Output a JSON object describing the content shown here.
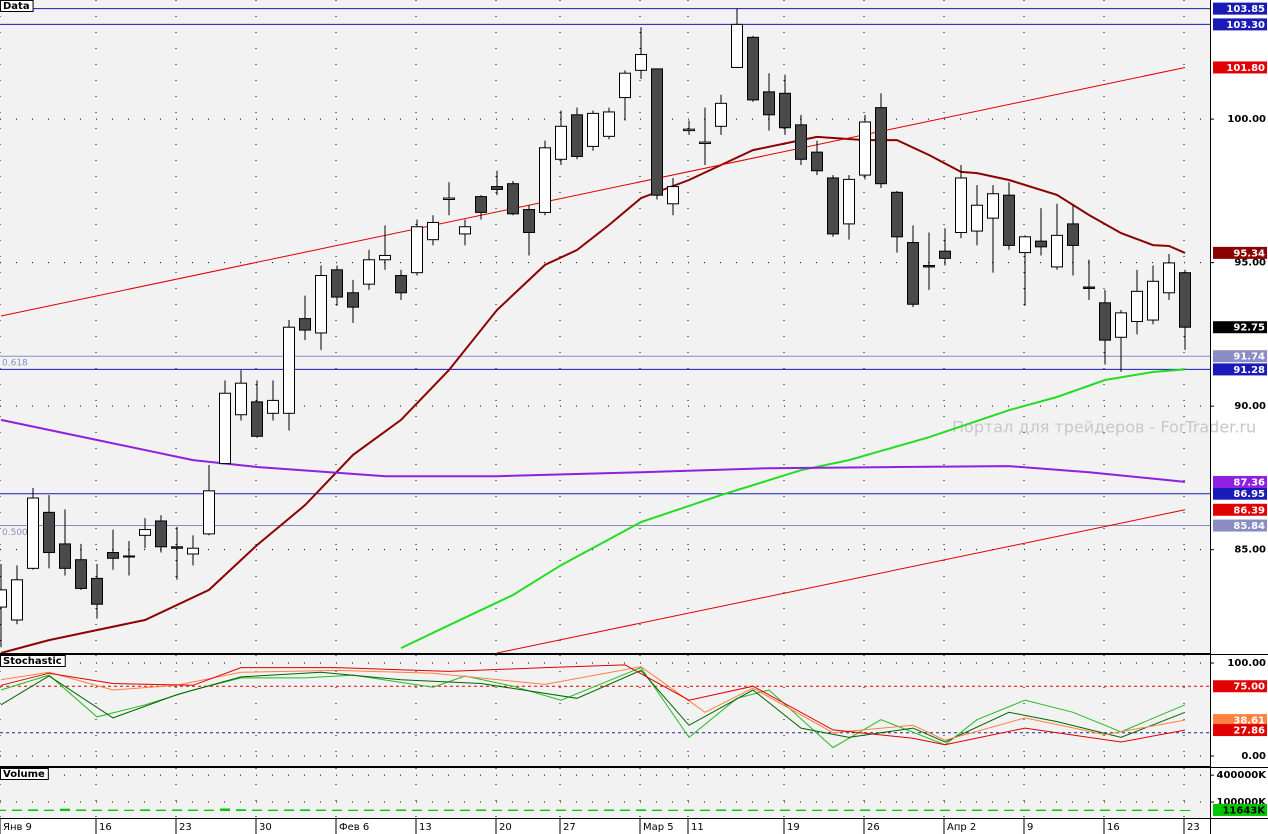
{
  "watermark": "Портал для трейдеров - ForTrader.ru",
  "chart_data": [
    {
      "type": "candlestick",
      "title": "Data",
      "x": [
        0,
        1,
        2,
        3,
        4,
        5,
        6,
        7,
        8,
        9,
        10,
        11,
        12,
        13,
        14,
        15,
        16,
        17,
        18,
        19,
        20,
        21,
        22,
        23,
        24,
        25,
        26,
        27,
        28,
        29,
        30,
        31,
        32,
        33,
        34,
        35,
        36,
        37,
        38,
        39,
        40,
        41,
        42,
        43,
        44,
        45,
        46,
        47,
        48,
        49,
        50,
        51,
        52,
        53,
        54,
        55,
        56,
        57,
        58,
        59,
        60,
        61,
        62,
        63,
        64,
        65,
        66,
        67,
        68,
        69,
        70,
        71,
        72,
        73,
        74
      ],
      "open": [
        83.0,
        82.55,
        84.35,
        86.3,
        85.2,
        84.65,
        84.0,
        84.9,
        84.75,
        85.5,
        86.0,
        85.1,
        84.85,
        85.55,
        88.0,
        89.7,
        90.15,
        89.75,
        89.75,
        93.05,
        92.55,
        94.75,
        93.95,
        94.25,
        95.1,
        94.55,
        94.65,
        95.8,
        97.2,
        96.0,
        97.3,
        97.65,
        97.75,
        96.85,
        96.75,
        98.6,
        100.15,
        99.05,
        99.4,
        100.75,
        101.7,
        101.75,
        97.05,
        99.6,
        99.15,
        99.75,
        101.8,
        102.85,
        100.95,
        100.9,
        99.8,
        98.85,
        97.95,
        96.35,
        98.05,
        100.4,
        97.45,
        95.7,
        94.9,
        95.4,
        96.05,
        96.1,
        96.55,
        97.35,
        95.35,
        95.75,
        94.85,
        96.35,
        94.15,
        93.6,
        92.4,
        92.95,
        93.0,
        93.95,
        94.65
      ],
      "high": [
        84.5,
        84.45,
        87.15,
        86.9,
        86.4,
        85.2,
        84.5,
        85.7,
        85.3,
        86.1,
        86.2,
        85.8,
        85.5,
        87.95,
        90.9,
        91.25,
        90.9,
        90.9,
        93.0,
        93.85,
        94.9,
        94.9,
        94.4,
        95.45,
        96.3,
        94.75,
        96.5,
        96.65,
        97.8,
        96.5,
        97.35,
        98.2,
        97.85,
        97.0,
        99.25,
        100.3,
        100.4,
        100.3,
        100.4,
        101.7,
        103.2,
        101.75,
        97.95,
        99.95,
        100.4,
        100.85,
        103.85,
        102.9,
        101.6,
        101.55,
        100.15,
        99.25,
        98.05,
        98.05,
        100.15,
        100.9,
        97.5,
        96.3,
        96.05,
        96.2,
        98.4,
        97.7,
        97.7,
        97.8,
        95.95,
        96.9,
        97.05,
        97.0,
        95.1,
        94.05,
        93.35,
        94.75,
        94.9,
        95.3,
        94.75
      ],
      "low": [
        81.6,
        82.4,
        84.3,
        84.35,
        84.1,
        83.6,
        82.6,
        84.3,
        84.1,
        85.05,
        84.9,
        83.95,
        84.45,
        85.5,
        88.0,
        89.5,
        88.9,
        89.5,
        89.15,
        92.3,
        91.95,
        93.5,
        92.9,
        94.05,
        94.75,
        93.7,
        94.55,
        95.6,
        96.65,
        95.6,
        96.5,
        97.35,
        96.65,
        95.25,
        96.65,
        98.4,
        98.6,
        98.9,
        99.3,
        99.95,
        101.4,
        97.2,
        96.65,
        99.45,
        98.4,
        99.45,
        101.8,
        100.6,
        99.6,
        99.45,
        98.4,
        98.05,
        95.9,
        95.8,
        97.9,
        97.6,
        95.35,
        93.45,
        94.05,
        94.9,
        95.85,
        95.6,
        94.65,
        95.45,
        93.5,
        95.25,
        94.75,
        94.55,
        93.7,
        91.45,
        91.2,
        92.5,
        92.85,
        93.7,
        91.96
      ],
      "close": [
        83.6,
        83.95,
        86.8,
        84.9,
        84.35,
        83.65,
        83.1,
        84.7,
        84.78,
        85.7,
        85.1,
        85.05,
        85.05,
        87.05,
        90.45,
        90.8,
        88.95,
        90.2,
        92.75,
        92.65,
        94.55,
        93.8,
        93.45,
        95.1,
        95.25,
        93.95,
        96.25,
        96.4,
        97.25,
        96.25,
        96.75,
        97.55,
        96.7,
        96.05,
        99.0,
        99.75,
        98.7,
        100.2,
        100.25,
        101.6,
        102.25,
        97.35,
        97.65,
        99.65,
        99.2,
        100.55,
        103.3,
        100.67,
        100.15,
        99.7,
        98.6,
        98.2,
        96.0,
        97.9,
        99.9,
        97.75,
        95.9,
        93.55,
        94.85,
        95.15,
        97.95,
        97.0,
        97.4,
        95.6,
        95.9,
        95.55,
        95.95,
        95.6,
        94.1,
        92.3,
        93.25,
        94.0,
        94.35,
        94.99,
        92.75
      ],
      "last_label": "92.75",
      "up_color": "#ffffff",
      "down_color": "#4a4a4a",
      "grid": true,
      "xlim": [
        -0.0625,
        75.5625
      ],
      "ylim": [
        81.4,
        104.15
      ],
      "yticks": [
        {
          "value": 85,
          "label": "85.00"
        },
        {
          "value": 90,
          "label": "90.00"
        },
        {
          "value": 95,
          "label": "95.00"
        },
        {
          "value": 100,
          "label": "100.00"
        }
      ],
      "xticks": [
        {
          "value": 0,
          "label": "Янв 9"
        },
        {
          "value": 6,
          "label": "16"
        },
        {
          "value": 11,
          "label": "23"
        },
        {
          "value": 16,
          "label": "30"
        },
        {
          "value": 21,
          "label": "Фев 6"
        },
        {
          "value": 26,
          "label": "13"
        },
        {
          "value": 31,
          "label": "20"
        },
        {
          "value": 35,
          "label": "27"
        },
        {
          "value": 40,
          "label": "Мар 5"
        },
        {
          "value": 43,
          "label": "11"
        },
        {
          "value": 49,
          "label": "19"
        },
        {
          "value": 54,
          "label": "26"
        },
        {
          "value": 59,
          "label": "Апр 2"
        },
        {
          "value": 64,
          "label": "9"
        },
        {
          "value": 69,
          "label": "16"
        },
        {
          "value": 74,
          "label": "23"
        }
      ],
      "lines": [
        {
          "color": "#8b0000",
          "width": 2,
          "x": [
            0,
            3,
            9,
            13,
            16,
            19,
            22,
            25,
            28,
            31,
            34,
            36,
            38,
            40,
            43,
            45,
            47,
            50,
            51,
            54,
            56,
            58,
            60,
            61,
            63,
            66,
            68,
            70,
            72,
            73,
            74
          ],
          "values": [
            81.4,
            81.85,
            82.55,
            83.6,
            85.16,
            86.55,
            88.3,
            89.52,
            91.26,
            93.35,
            94.92,
            95.44,
            96.31,
            97.25,
            97.88,
            98.4,
            98.92,
            99.27,
            99.38,
            99.27,
            99.27,
            98.75,
            98.16,
            98.12,
            97.88,
            97.36,
            96.66,
            96.03,
            95.61,
            95.58,
            95.34
          ],
          "tag": "95.34"
        },
        {
          "color": "#22dd22",
          "width": 2,
          "x": [
            25,
            28,
            32,
            35,
            40,
            45,
            50,
            53,
            58,
            63,
            66,
            69,
            72,
            74
          ],
          "values": [
            81.57,
            82.37,
            83.42,
            84.46,
            85.96,
            86.9,
            87.77,
            88.12,
            88.92,
            89.86,
            90.32,
            90.91,
            91.19,
            91.28
          ]
        },
        {
          "color": "#9020e0",
          "width": 2,
          "x": [
            0,
            6,
            12,
            16,
            24,
            31,
            40,
            48,
            56,
            63,
            68,
            73,
            74
          ],
          "values": [
            89.52,
            88.82,
            88.12,
            87.88,
            87.56,
            87.56,
            87.7,
            87.84,
            87.88,
            87.91,
            87.7,
            87.42,
            87.36
          ],
          "tag": "87.36"
        },
        {
          "color": "#e00000",
          "width": 1,
          "x": [
            0,
            74
          ],
          "values": [
            93.14,
            101.8
          ],
          "tag": "101.80"
        },
        {
          "color": "#e00000",
          "width": 1,
          "x": [
            31,
            74
          ],
          "values": [
            81.4,
            86.39
          ],
          "tag": "86.39"
        }
      ],
      "levels": [
        {
          "value": 103.85,
          "label": "103.85",
          "color": "#1a1ab8"
        },
        {
          "value": 103.3,
          "label": "103.30",
          "color": "#1a1ab8"
        },
        {
          "value": 91.74,
          "label": "91.74",
          "color": "#8c8cc4",
          "ratio": "0.618"
        },
        {
          "value": 91.28,
          "label": "91.28",
          "color": "#1a1ab8"
        },
        {
          "value": 86.95,
          "label": "86.95",
          "color": "#1a1ab8"
        },
        {
          "value": 85.84,
          "label": "85.84",
          "color": "#8c8cc4",
          "ratio": "0.500"
        }
      ]
    },
    {
      "type": "line",
      "title": "Stochastic",
      "ylim": [
        -9.7,
        108.6
      ],
      "yticks": [
        {
          "value": 0,
          "label": "0.00"
        },
        {
          "value": 100,
          "label": "100.00"
        }
      ],
      "levels": [
        {
          "value": 75,
          "label": "75.00",
          "color": "#e00000"
        },
        {
          "value": 25,
          "color": "#2020a0"
        }
      ],
      "series": [
        {
          "color": "#22bb22",
          "x": [
            0,
            3,
            6,
            9,
            12,
            15,
            19,
            22,
            27,
            29,
            32,
            35,
            40,
            43,
            46,
            48,
            52,
            55,
            59,
            61,
            64,
            67,
            70,
            74
          ],
          "values": [
            71,
            87,
            42,
            55,
            71,
            84,
            84,
            87,
            74,
            86,
            75,
            60,
            95,
            20,
            62,
            71,
            9,
            39,
            12,
            39,
            60,
            47,
            26,
            55
          ]
        },
        {
          "color": "#006400",
          "x": [
            0,
            3,
            7,
            11,
            15,
            20,
            25,
            30,
            36,
            40,
            43,
            47,
            50,
            53,
            57,
            59,
            63,
            66,
            70,
            74
          ],
          "values": [
            55,
            86,
            41,
            66,
            85,
            90,
            82,
            78,
            62,
            92,
            33,
            71,
            30,
            20,
            30,
            15,
            47,
            37,
            20,
            47
          ]
        },
        {
          "color": "#ff8040",
          "x": [
            0,
            3,
            7,
            11,
            15,
            21,
            27,
            34,
            40,
            44,
            47,
            52,
            57,
            59,
            64,
            69,
            74
          ],
          "values": [
            82,
            90,
            71,
            76,
            90,
            92,
            89,
            77,
            96,
            47,
            73,
            25,
            33,
            17,
            41,
            23,
            38.61
          ],
          "tag": "38.61"
        },
        {
          "color": "#e00000",
          "x": [
            0,
            3,
            7,
            12,
            15,
            21,
            28,
            34,
            39,
            43,
            47,
            52,
            57,
            59,
            64,
            70,
            74
          ],
          "values": [
            76,
            89,
            78,
            76,
            95,
            95,
            91,
            95,
            98,
            60,
            75,
            28,
            19,
            12,
            30,
            15,
            27.86
          ],
          "tag": "27.86"
        }
      ]
    },
    {
      "type": "bar",
      "title": "Volume",
      "color": "#00c800",
      "ylim": [
        0,
        480000
      ],
      "yticks": [
        {
          "value": 100000,
          "label": "100000K"
        },
        {
          "value": 400000,
          "label": "400000K"
        }
      ],
      "values": [
        14000,
        16000,
        18000,
        15000,
        26000,
        17000,
        15000,
        16000,
        14000,
        18000,
        15000,
        17000,
        16000,
        15000,
        28000,
        19000,
        16000,
        15000,
        17000,
        18000,
        16000,
        15000,
        14000,
        16000,
        15000,
        17000,
        15000,
        14000,
        16000,
        15000,
        17000,
        14000,
        16000,
        15000,
        15000,
        16000,
        14000,
        15000,
        17000,
        16000,
        18000,
        15000,
        14000,
        16000,
        15000,
        17000,
        16000,
        15000,
        14000,
        16000,
        15000,
        14000,
        16000,
        15000,
        17000,
        16000,
        14000,
        15000,
        16000,
        15000,
        14000,
        16000,
        15000,
        14000,
        16000,
        15000,
        17000,
        14000,
        15000,
        16000,
        14000,
        15000,
        16000,
        14000,
        11643
      ],
      "last_label": "11643K"
    }
  ]
}
